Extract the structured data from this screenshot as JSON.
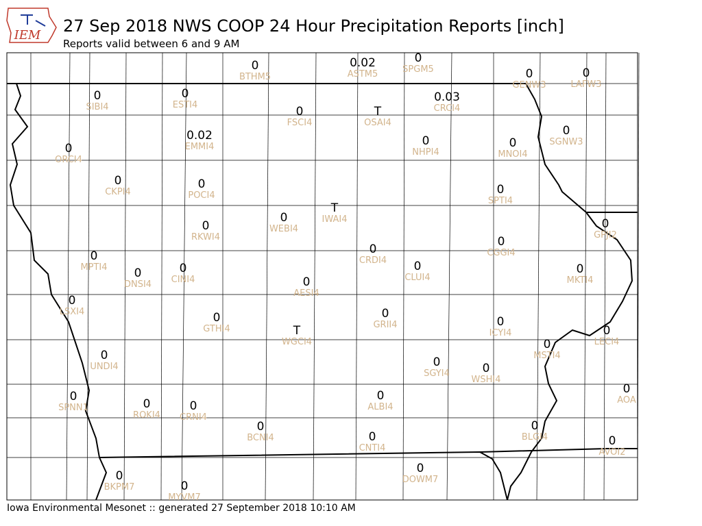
{
  "header": {
    "logo": "IEM",
    "title": "27 Sep 2018 NWS COOP 24 Hour Precipitation Reports [inch]",
    "subtitle": "Reports valid between 6 and 9 AM"
  },
  "stations": [
    {
      "value": "0",
      "id": "BTHM5"
    },
    {
      "value": "0.02",
      "id": "ASTM5"
    },
    {
      "value": "0",
      "id": "SPGM5"
    },
    {
      "value": "0",
      "id": "GENW3"
    },
    {
      "value": "0",
      "id": "LAFW3"
    },
    {
      "value": "0",
      "id": "SIBI4"
    },
    {
      "value": "0",
      "id": "ESTI4"
    },
    {
      "value": "0",
      "id": "FSCI4"
    },
    {
      "value": "T",
      "id": "OSAI4"
    },
    {
      "value": "0.03",
      "id": "CRCI4"
    },
    {
      "value": "0",
      "id": "ORCI4"
    },
    {
      "value": "0.02",
      "id": "EMMI4"
    },
    {
      "value": "0",
      "id": "NHPI4"
    },
    {
      "value": "0",
      "id": "MNOI4"
    },
    {
      "value": "0",
      "id": "SGNW3"
    },
    {
      "value": "0",
      "id": "CKPI4"
    },
    {
      "value": "0",
      "id": "POCI4"
    },
    {
      "value": "0",
      "id": "SPTI4"
    },
    {
      "value": "T",
      "id": "IWAI4"
    },
    {
      "value": "0",
      "id": "WEBI4"
    },
    {
      "value": "0",
      "id": "RKWI4"
    },
    {
      "value": "0",
      "id": "GPJI2"
    },
    {
      "value": "0",
      "id": "CRDI4"
    },
    {
      "value": "0",
      "id": "CGGI4"
    },
    {
      "value": "0",
      "id": "MPTI4"
    },
    {
      "value": "0",
      "id": "DNSI4"
    },
    {
      "value": "0",
      "id": "CINI4"
    },
    {
      "value": "0",
      "id": "CLUI4"
    },
    {
      "value": "0",
      "id": "MKTI4"
    },
    {
      "value": "0",
      "id": "AESI4"
    },
    {
      "value": "0",
      "id": "LSXI4"
    },
    {
      "value": "0",
      "id": "GTHI4"
    },
    {
      "value": "0",
      "id": "GRII4"
    },
    {
      "value": "T",
      "id": "WGCI4"
    },
    {
      "value": "0",
      "id": "ICYI4"
    },
    {
      "value": "0",
      "id": "LECI4"
    },
    {
      "value": "0",
      "id": "MSTI4"
    },
    {
      "value": "0",
      "id": "UNDI4"
    },
    {
      "value": "0",
      "id": "SGYI4"
    },
    {
      "value": "0",
      "id": "WSHI4"
    },
    {
      "value": "0",
      "id": "AOA"
    },
    {
      "value": "0",
      "id": "SPNN1"
    },
    {
      "value": "0",
      "id": "ALBI4"
    },
    {
      "value": "0",
      "id": "ROKI4"
    },
    {
      "value": "0",
      "id": "CRNI4"
    },
    {
      "value": "0",
      "id": "BCNI4"
    },
    {
      "value": "0",
      "id": "BLGI4"
    },
    {
      "value": "0",
      "id": "CNTI4"
    },
    {
      "value": "0",
      "id": "AVOI2"
    },
    {
      "value": "0",
      "id": "DOWM7"
    },
    {
      "value": "0",
      "id": "BKPM7"
    },
    {
      "value": "0",
      "id": "MYVM7"
    }
  ],
  "footer": "Iowa Environmental Mesonet :: generated 27 September 2018 10:10 AM"
}
